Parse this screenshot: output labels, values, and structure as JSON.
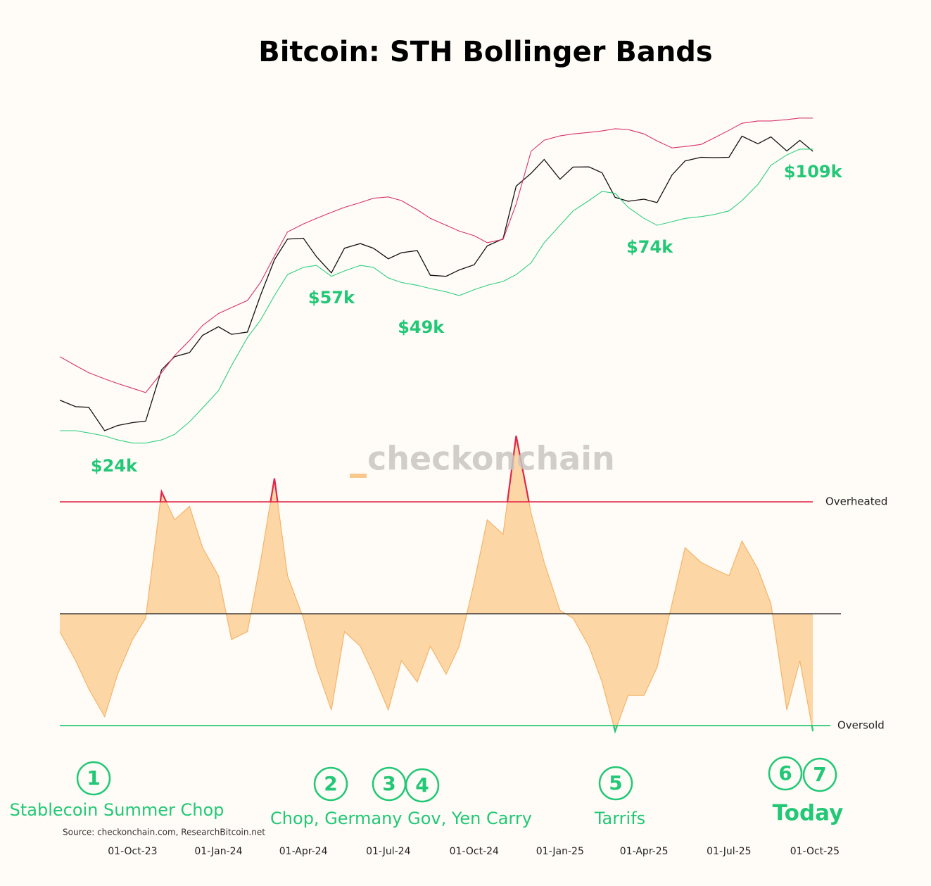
{
  "chart_data": [
    {
      "type": "line",
      "title": "Bitcoin: STH Bollinger Bands",
      "log_scale": true,
      "x": [
        "2023-07-15",
        "2023-08-01",
        "2023-08-15",
        "2023-09-01",
        "2023-09-15",
        "2023-10-01",
        "2023-10-15",
        "2023-11-01",
        "2023-11-15",
        "2023-12-01",
        "2023-12-15",
        "2024-01-01",
        "2024-01-15",
        "2024-02-01",
        "2024-02-15",
        "2024-03-01",
        "2024-03-15",
        "2024-04-01",
        "2024-04-15",
        "2024-05-01",
        "2024-05-15",
        "2024-06-01",
        "2024-06-15",
        "2024-07-01",
        "2024-07-15",
        "2024-08-01",
        "2024-08-15",
        "2024-09-01",
        "2024-09-15",
        "2024-10-01",
        "2024-10-15",
        "2024-11-01",
        "2024-11-15",
        "2024-12-01",
        "2024-12-15",
        "2025-01-01",
        "2025-01-15",
        "2025-02-01",
        "2025-02-15",
        "2025-03-01",
        "2025-03-15",
        "2025-04-01",
        "2025-04-15",
        "2025-05-01",
        "2025-05-15",
        "2025-06-01",
        "2025-06-15",
        "2025-07-01",
        "2025-07-15",
        "2025-08-01",
        "2025-08-15",
        "2025-09-01",
        "2025-09-15",
        "2025-09-29"
      ],
      "xlim": [
        "2023-07-15",
        "2025-10-29"
      ],
      "ylim": [
        23.4,
        133
      ],
      "series": [
        {
          "color": "#111111",
          "values": [
            30.3,
            29.3,
            29.2,
            25.9,
            26.6,
            27.0,
            27.2,
            35.4,
            37.9,
            38.7,
            42.3,
            44.2,
            42.5,
            43.0,
            51.9,
            62.4,
            69.4,
            69.7,
            63.4,
            58.3,
            66.2,
            67.8,
            66.2,
            62.7,
            64.7,
            65.4,
            57.6,
            57.3,
            59.2,
            60.8,
            67.0,
            69.5,
            91.1,
            97.3,
            104.5,
            94.4,
            100.5,
            100.6,
            97.6,
            86.0,
            84.3,
            85.2,
            83.7,
            96.5,
            103.7,
            105.7,
            105.5,
            105.7,
            117.8,
            113.3,
            117.4,
            109.2,
            115.3,
            109
          ]
        },
        {
          "color": "#d6336c",
          "values": [
            37.9,
            36.2,
            34.9,
            33.8,
            33.0,
            32.2,
            31.5,
            34.9,
            38.1,
            41.2,
            44.5,
            47.3,
            48.8,
            50.6,
            55.5,
            63.6,
            72.0,
            75.0,
            77.2,
            79.6,
            81.7,
            83.7,
            85.6,
            86.2,
            84.6,
            80.7,
            77.2,
            74.5,
            72.3,
            70.6,
            68.1,
            69.3,
            83.1,
            109.0,
            115.4,
            118.0,
            119.2,
            120.1,
            121.0,
            122.4,
            121.9,
            119.2,
            115.0,
            110.9,
            111.7,
            112.9,
            116.7,
            121.4,
            125.9,
            127.4,
            127.4,
            128.3,
            129.3,
            129.3
          ]
        },
        {
          "color": "#2fcf80",
          "values": [
            25.9,
            25.9,
            25.6,
            25.2,
            24.7,
            24.3,
            24.3,
            24.7,
            25.4,
            27.1,
            29.1,
            31.8,
            36.2,
            41.8,
            45.7,
            51.9,
            57.8,
            60.0,
            60.6,
            57.3,
            58.9,
            60.6,
            60.0,
            56.8,
            55.5,
            54.7,
            53.8,
            52.9,
            51.9,
            53.5,
            54.7,
            55.8,
            57.8,
            61.4,
            68.1,
            74.5,
            80.2,
            84.6,
            88.7,
            87.8,
            81.7,
            77.2,
            74.5,
            75.9,
            77.2,
            77.9,
            78.7,
            80.2,
            84.6,
            91.9,
            101.4,
            107.0,
            110.2,
            110.2
          ]
        }
      ],
      "annotations": [
        {
          "label": "$24k",
          "x": "2023-09-11",
          "value": 24
        },
        {
          "label": "$57k",
          "x": "2024-05-01",
          "value": 57
        },
        {
          "label": "$49k",
          "x": "2024-08-05",
          "value": 49
        },
        {
          "label": "$74k",
          "x": "2025-04-07",
          "value": 74
        },
        {
          "label": "$109k",
          "x": "2025-09-29",
          "value": 109
        }
      ]
    },
    {
      "type": "area",
      "x": [
        "2023-07-15",
        "2023-08-01",
        "2023-08-15",
        "2023-09-01",
        "2023-09-15",
        "2023-10-01",
        "2023-10-15",
        "2023-11-01",
        "2023-11-15",
        "2023-12-01",
        "2023-12-15",
        "2024-01-01",
        "2024-01-15",
        "2024-02-01",
        "2024-02-15",
        "2024-03-01",
        "2024-03-15",
        "2024-04-01",
        "2024-04-15",
        "2024-05-01",
        "2024-05-15",
        "2024-06-01",
        "2024-06-15",
        "2024-07-01",
        "2024-07-15",
        "2024-08-01",
        "2024-08-15",
        "2024-09-01",
        "2024-09-15",
        "2024-10-01",
        "2024-10-15",
        "2024-11-01",
        "2024-11-15",
        "2024-12-01",
        "2024-12-15",
        "2025-01-01",
        "2025-01-15",
        "2025-02-01",
        "2025-02-15",
        "2025-03-01",
        "2025-03-15",
        "2025-04-01",
        "2025-04-15",
        "2025-05-01",
        "2025-05-15",
        "2025-06-01",
        "2025-06-15",
        "2025-07-01",
        "2025-07-15",
        "2025-08-01",
        "2025-08-15",
        "2025-09-01",
        "2025-09-15",
        "2025-09-29"
      ],
      "xlim": [
        "2023-07-15",
        "2025-10-29"
      ],
      "xticks": [
        {
          "value": "2023-10-01",
          "label": "01-Oct-23"
        },
        {
          "value": "2024-01-01",
          "label": "01-Jan-24"
        },
        {
          "value": "2024-04-01",
          "label": "01-Apr-24"
        },
        {
          "value": "2024-07-01",
          "label": "01-Jul-24"
        },
        {
          "value": "2024-10-01",
          "label": "01-Oct-24"
        },
        {
          "value": "2025-01-01",
          "label": "01-Jan-25"
        },
        {
          "value": "2025-04-01",
          "label": "01-Apr-25"
        },
        {
          "value": "2025-07-01",
          "label": "01-Jul-25"
        },
        {
          "value": "2025-10-01",
          "label": "01-Oct-25"
        }
      ],
      "ylim": [
        -1.37,
        1.9
      ],
      "color": "#fcd6a4",
      "values": [
        -0.16,
        -0.42,
        -0.67,
        -0.92,
        -0.54,
        -0.23,
        -0.04,
        1.09,
        0.84,
        0.96,
        0.59,
        0.34,
        -0.23,
        -0.16,
        0.46,
        1.21,
        0.34,
        -0.04,
        -0.48,
        -0.86,
        -0.16,
        -0.29,
        -0.54,
        -0.86,
        -0.42,
        -0.61,
        -0.29,
        -0.54,
        -0.29,
        0.28,
        0.84,
        0.71,
        1.59,
        0.9,
        0.46,
        0.03,
        -0.04,
        -0.29,
        -0.61,
        -1.05,
        -0.73,
        -0.73,
        -0.48,
        0.09,
        0.59,
        0.46,
        0.4,
        0.34,
        0.65,
        0.4,
        0.09,
        -0.86,
        -0.42,
        -1.05
      ],
      "thresholds": [
        {
          "label": "Overheated",
          "value": 1,
          "color": "#e0264a"
        },
        {
          "label": "Oversold",
          "value": -1,
          "color": "#22c873"
        }
      ]
    }
  ],
  "watermark": "checkonchain",
  "source": "Source: checkonchain.com, ResearchBitcoin.net",
  "events": [
    "1",
    "2",
    "3",
    "4",
    "5",
    "6",
    "7"
  ],
  "event_captions": [
    "Stablecoin Summer Chop",
    "Chop, Germany Gov, Yen Carry",
    "Tarrifs",
    "Today"
  ]
}
